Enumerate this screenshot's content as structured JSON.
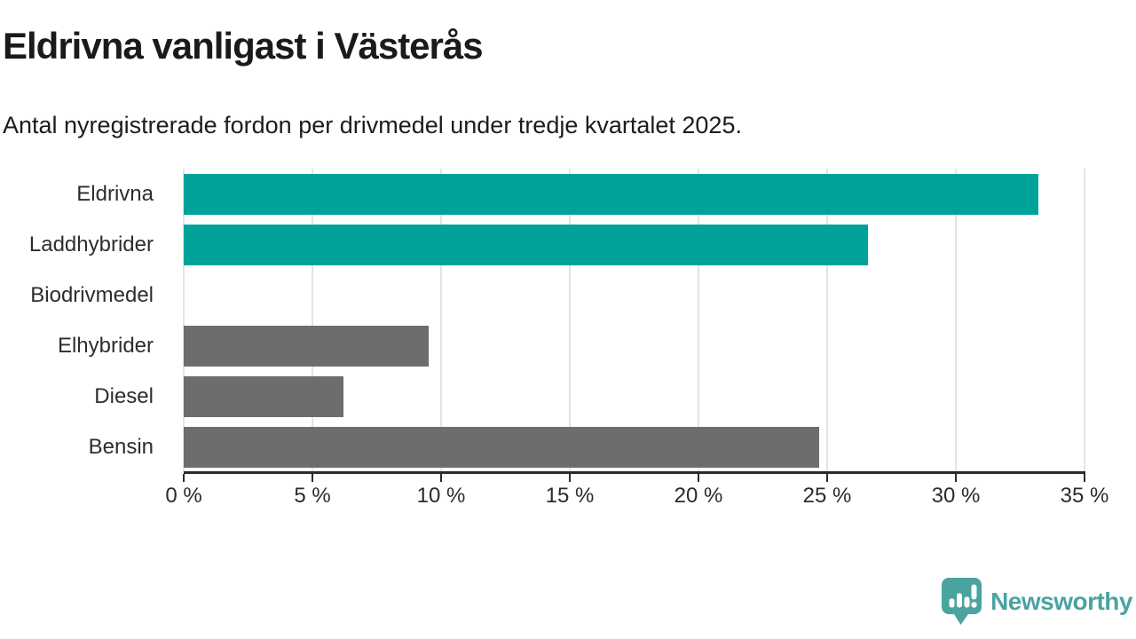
{
  "header": {
    "title": "Eldrivna vanligast i Västerås",
    "subtitle": "Antal nyregistrerade fordon per drivmedel under tredje kvartalet 2025."
  },
  "chart_data": {
    "type": "bar",
    "orientation": "horizontal",
    "title": "Eldrivna vanligast i Västerås",
    "subtitle": "Antal nyregistrerade fordon per drivmedel under tredje kvartalet 2025.",
    "categories": [
      "Eldrivna",
      "Laddhybrider",
      "Biodrivmedel",
      "Elhybrider",
      "Diesel",
      "Bensin"
    ],
    "values": [
      33.2,
      26.6,
      0,
      9.5,
      6.2,
      24.7
    ],
    "unit": "%",
    "bar_colors": [
      "#00a39a",
      "#00a39a",
      "#6d6d70",
      "#6d6d70",
      "#6d6d70",
      "#6d6d70"
    ],
    "highlight_color": "#00a39a",
    "default_color": "#6d6d70",
    "xlabel": "",
    "ylabel": "",
    "xlim": [
      0,
      35
    ],
    "x_ticks": [
      0,
      5,
      10,
      15,
      20,
      25,
      30,
      35
    ],
    "x_tick_labels": [
      "0 %",
      "5 %",
      "10 %",
      "15 %",
      "20 %",
      "25 %",
      "30 %",
      "35 %"
    ],
    "grid": "vertical",
    "gridline_color": "#e4e4e4",
    "axis_color": "#2b2b2b",
    "legend": "none"
  },
  "branding": {
    "logo_text": "Newsworthy",
    "logo_color": "#4ba3a0",
    "logo_icon": "newsworthy-speech-bubble-chart-icon"
  }
}
